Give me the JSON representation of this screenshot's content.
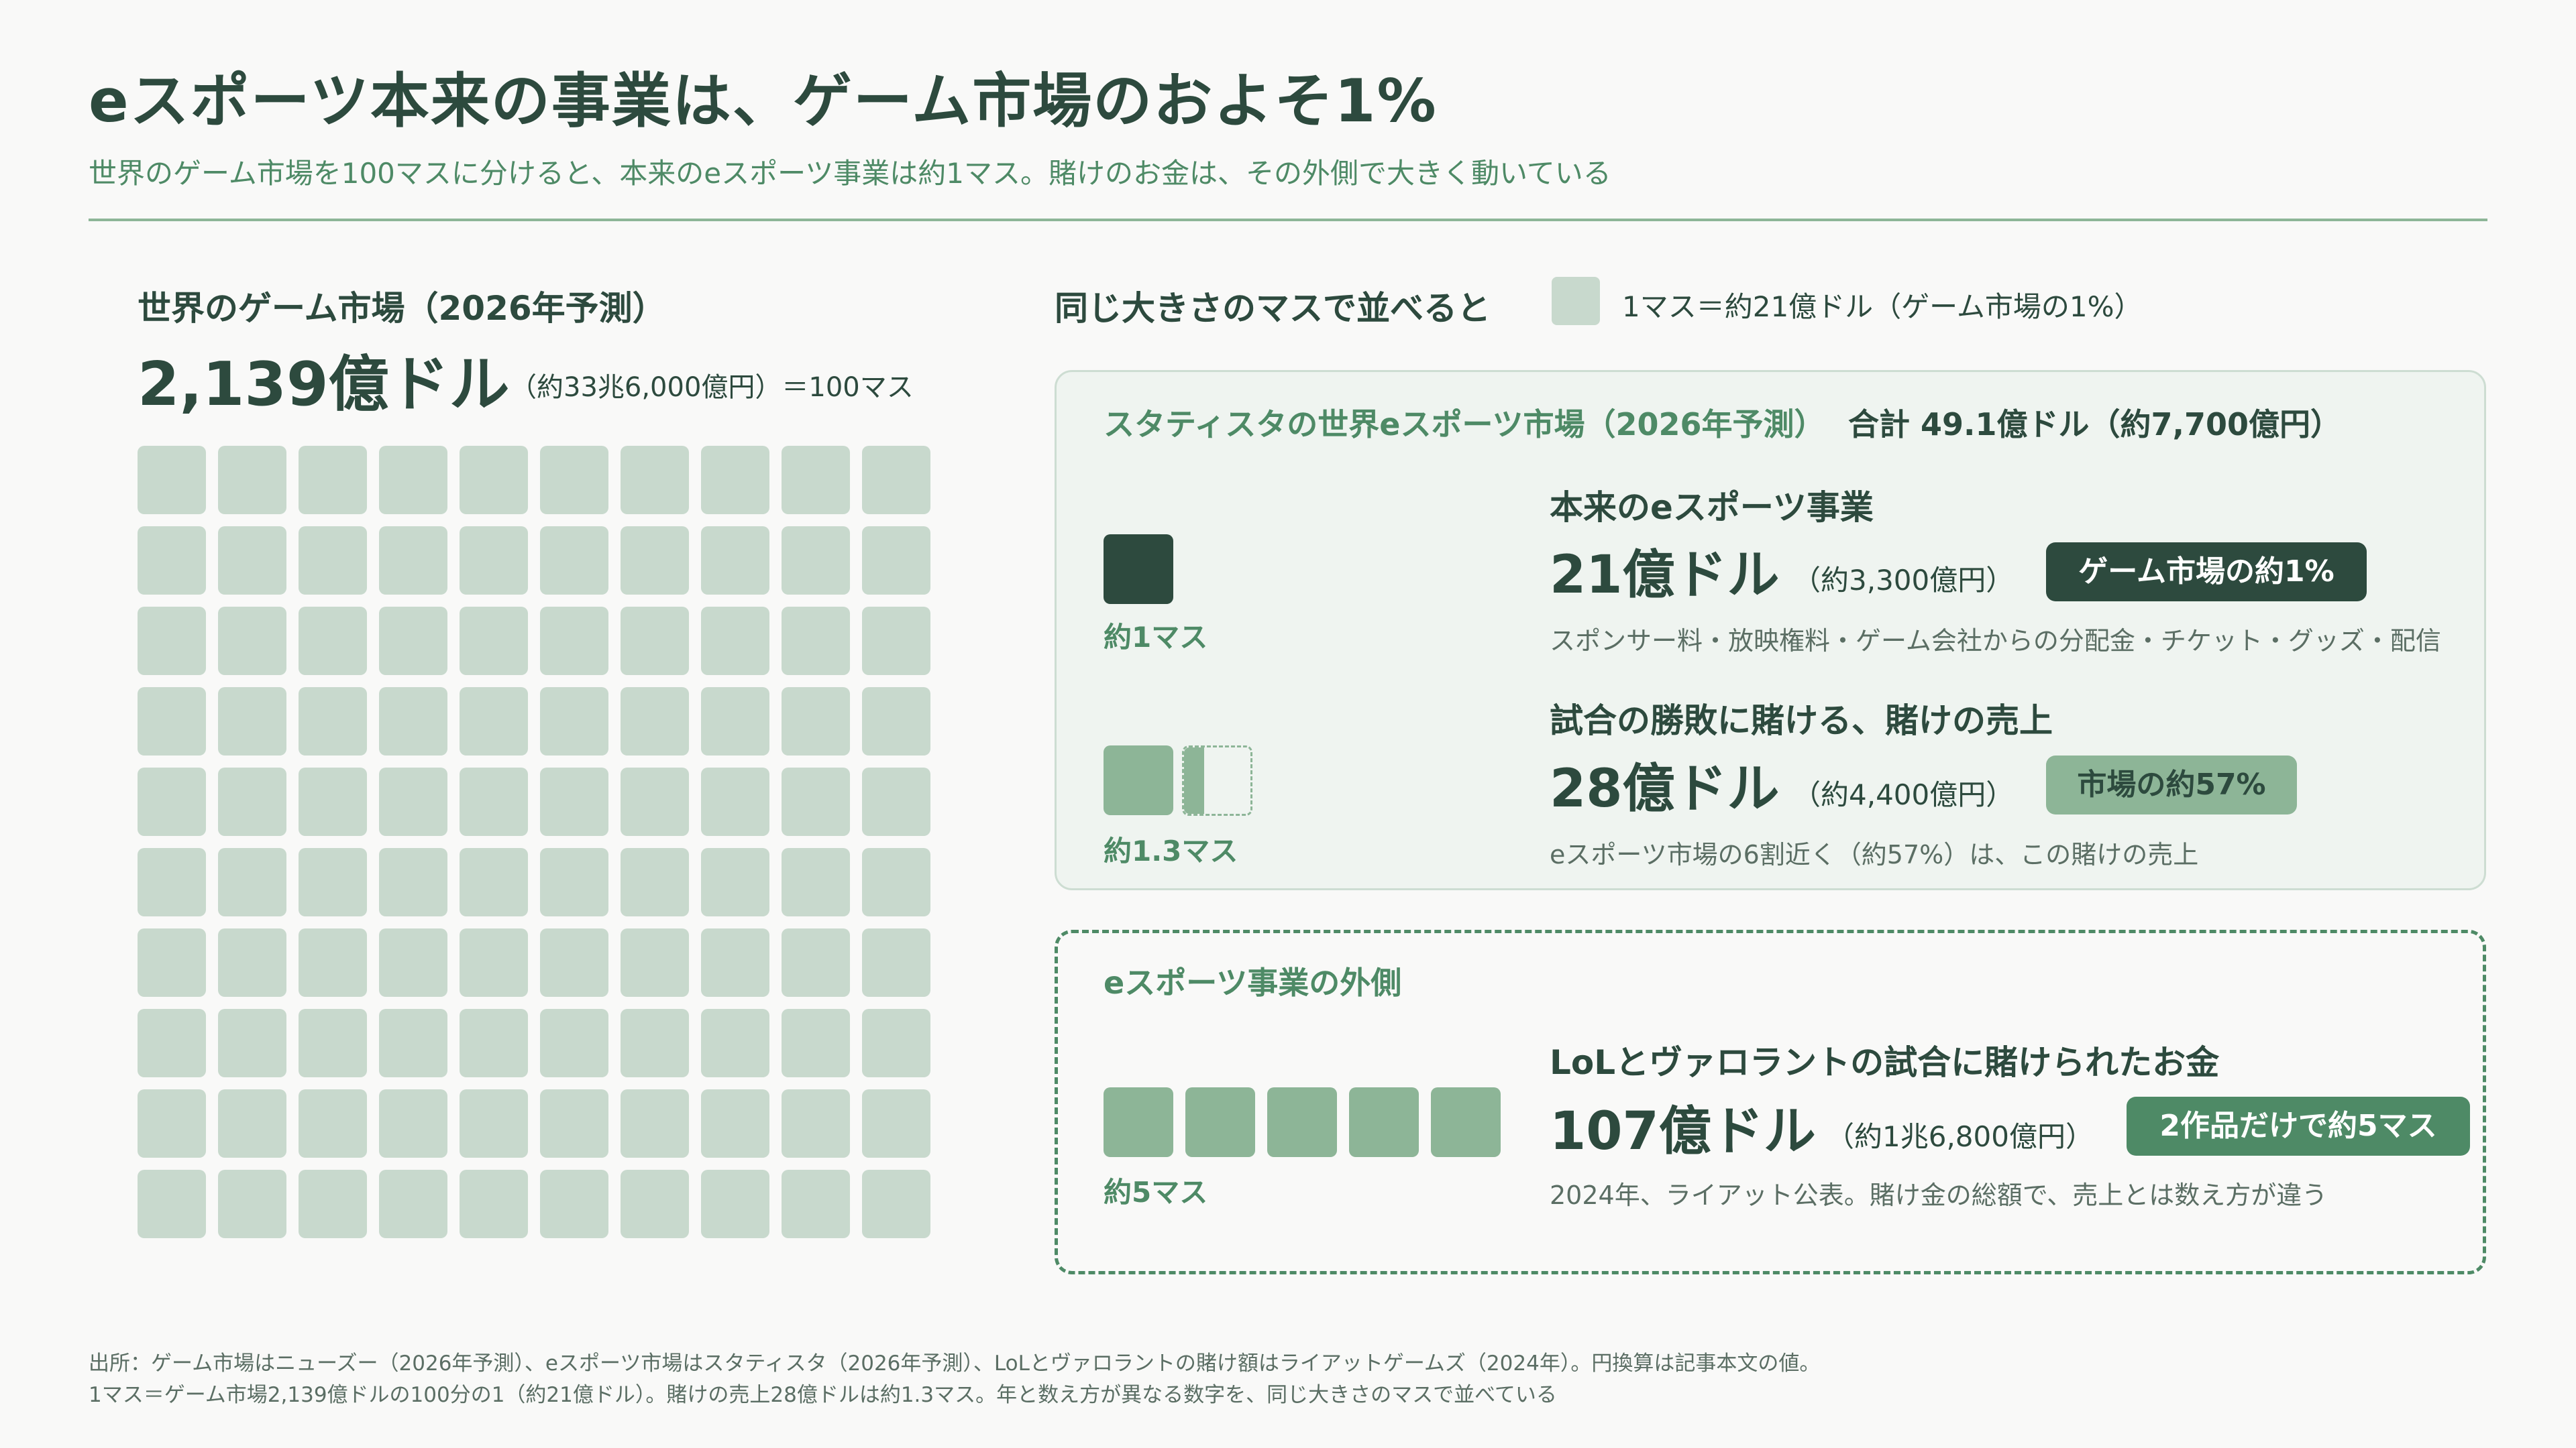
{
  "header": {
    "title": "eスポーツ本来の事業は、ゲーム市場のおよそ1%",
    "subtitle": "世界のゲーム市場を100マスに分けると、本来のeスポーツ事業は約1マス。賭けのお金は、その外側で大きく動いている"
  },
  "game_market": {
    "heading": "世界のゲーム市場（2026年予測）",
    "amount": "2,139億ドル",
    "note": "（約33兆6,000億円）＝100マス",
    "grid_cells": 100
  },
  "compare": {
    "heading": "同じ大きさのマスで並べると",
    "legend": "1マス＝約21億ドル（ゲーム市場の1%）"
  },
  "esports_market": {
    "title": "スタティスタの世界eスポーツ市場（2026年予測）",
    "total": "合計 49.1億ドル（約7,700億円）",
    "core": {
      "title": "本来のeスポーツ事業",
      "amount": "21億ドル",
      "note": "（約3,300億円）",
      "badge": "ゲーム市場の約1%",
      "desc": "スポンサー料・放映権料・ゲーム会社からの分配金・チケット・グッズ・配信",
      "mass_label": "約1マス",
      "squares": 1
    },
    "betting": {
      "title": "試合の勝敗に賭ける、賭けの売上",
      "amount": "28億ドル",
      "note": "（約4,400億円）",
      "badge": "市場の約57%",
      "desc": "eスポーツ市場の6割近く（約57%）は、この賭けの売上",
      "mass_label": "約1.3マス",
      "squares": 1.3
    }
  },
  "outside": {
    "title": "eスポーツ事業の外側",
    "item": {
      "title": "LoLとヴァロラントの試合に賭けられたお金",
      "amount": "107億ドル",
      "note": "（約1兆6,800億円）",
      "badge": "2作品だけで約5マス",
      "desc": "2024年、ライアット公表。賭け金の総額で、売上とは数え方が違う",
      "mass_label": "約5マス",
      "squares": 5
    }
  },
  "footer": {
    "source": "出所：ゲーム市場はニューズー（2026年予測）、eスポーツ市場はスタティスタ（2026年予測）、LoLとヴァロラントの賭け額はライアットゲームズ（2024年）。円換算は記事本文の値。",
    "note": "1マス＝ゲーム市場2,139億ドルの100分の1（約21億ドル）。賭けの売上28億ドルは約1.3マス。年と数え方が異なる数字を、同じ大きさのマスで並べている"
  },
  "colors": {
    "dark": "#2d4a3e",
    "mid": "#8db597",
    "accent": "#4e8a66",
    "light": "#c8d9cd",
    "panel": "#eff4f0",
    "background": "#f9f9f8"
  }
}
